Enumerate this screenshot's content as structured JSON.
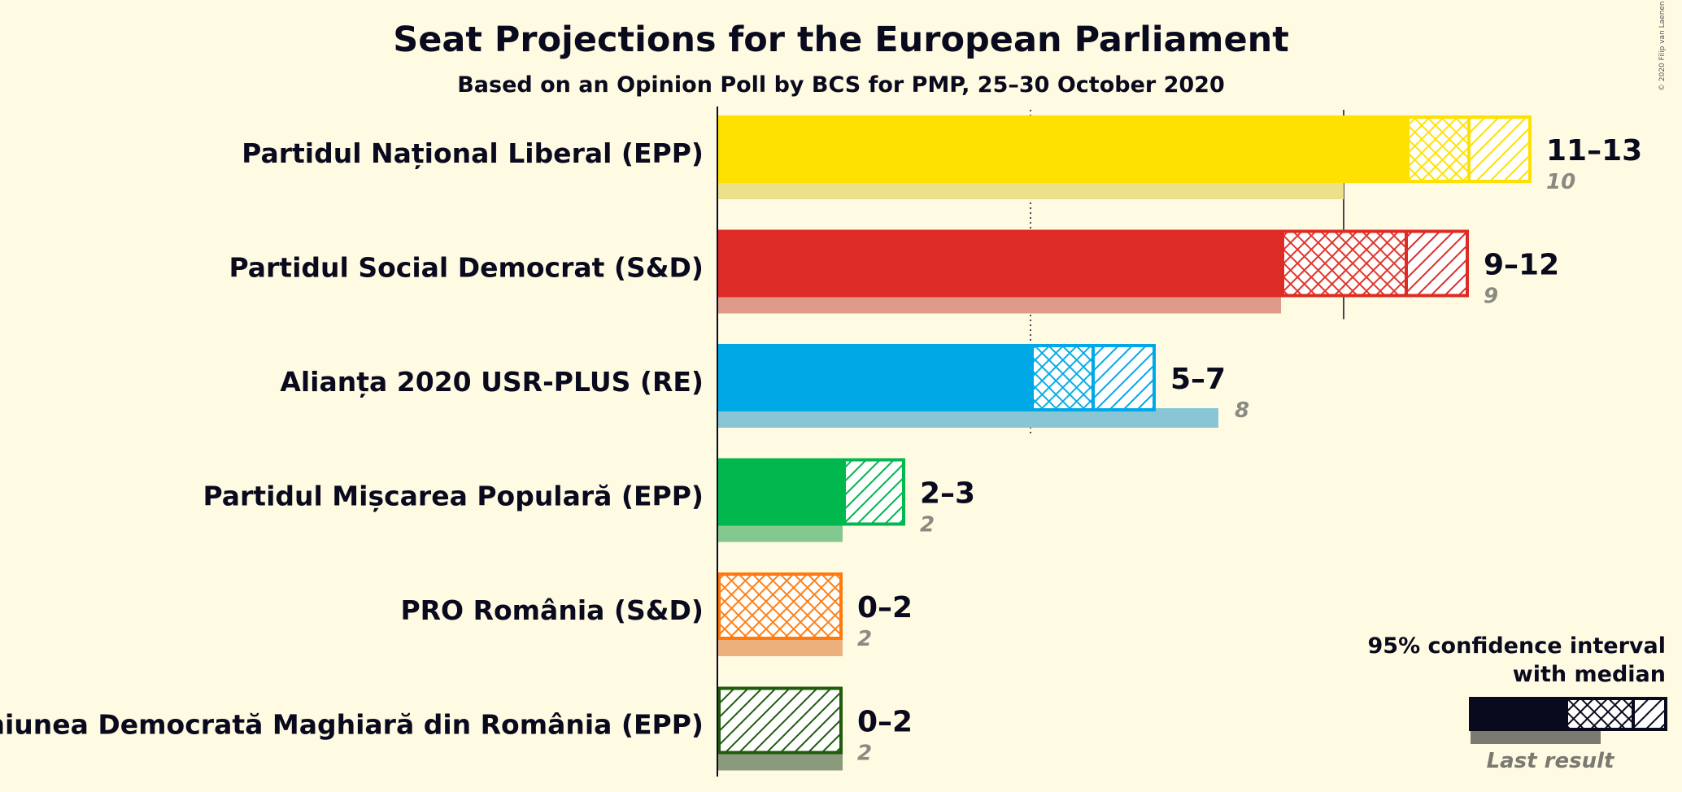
{
  "title": "Seat Projections for the European Parliament",
  "subtitle": "Based on an Opinion Poll by BCS for PMP, 25–30 October 2020",
  "copyright": "© 2020 Filip van Laenen",
  "legend": {
    "line1": "95% confidence interval",
    "line2": "with median",
    "last_result": "Last result",
    "bar_color": "#0a0a1e",
    "last_color": "#7a7a72"
  },
  "chart_data": {
    "type": "bar",
    "orientation": "horizontal",
    "title": "Seat Projections for the European Parliament",
    "subtitle": "Based on an Opinion Poll by BCS for PMP, 25–30 October 2020",
    "xlim": [
      0,
      15
    ],
    "reference_lines": [
      5,
      10
    ],
    "parties": [
      {
        "name": "Partidul Național Liberal (EPP)",
        "low": 11,
        "median": 12,
        "high": 13,
        "range_label": "11–13",
        "last": 10,
        "last_label": "10",
        "color": "#ffe100",
        "last_color": "#ece08a"
      },
      {
        "name": "Partidul Social Democrat (S&D)",
        "low": 9,
        "median": 11,
        "high": 12,
        "range_label": "9–12",
        "last": 9,
        "last_label": "9",
        "color": "#dd2c25",
        "last_color": "#df9a8a"
      },
      {
        "name": "Alianța 2020 USR-PLUS (RE)",
        "low": 5,
        "median": 6,
        "high": 7,
        "range_label": "5–7",
        "last": 8,
        "last_label": "8",
        "color": "#00a8e6",
        "last_color": "#88c6d6"
      },
      {
        "name": "Partidul Mișcarea Populară (EPP)",
        "low": 2,
        "median": 2,
        "high": 3,
        "range_label": "2–3",
        "last": 2,
        "last_label": "2",
        "color": "#00b84e",
        "last_color": "#83c88f"
      },
      {
        "name": "PRO România (S&D)",
        "low": 0,
        "median": 2,
        "high": 2,
        "range_label": "0–2",
        "last": 2,
        "last_label": "2",
        "color": "#ff7a0d",
        "last_color": "#ebb07c"
      },
      {
        "name": "Uniunea Democrată Maghiară din România (EPP)",
        "low": 0,
        "median": 0,
        "high": 2,
        "range_label": "0–2",
        "last": 2,
        "last_label": "2",
        "color": "#1f5c0a",
        "last_color": "#8b9a7d"
      }
    ]
  }
}
